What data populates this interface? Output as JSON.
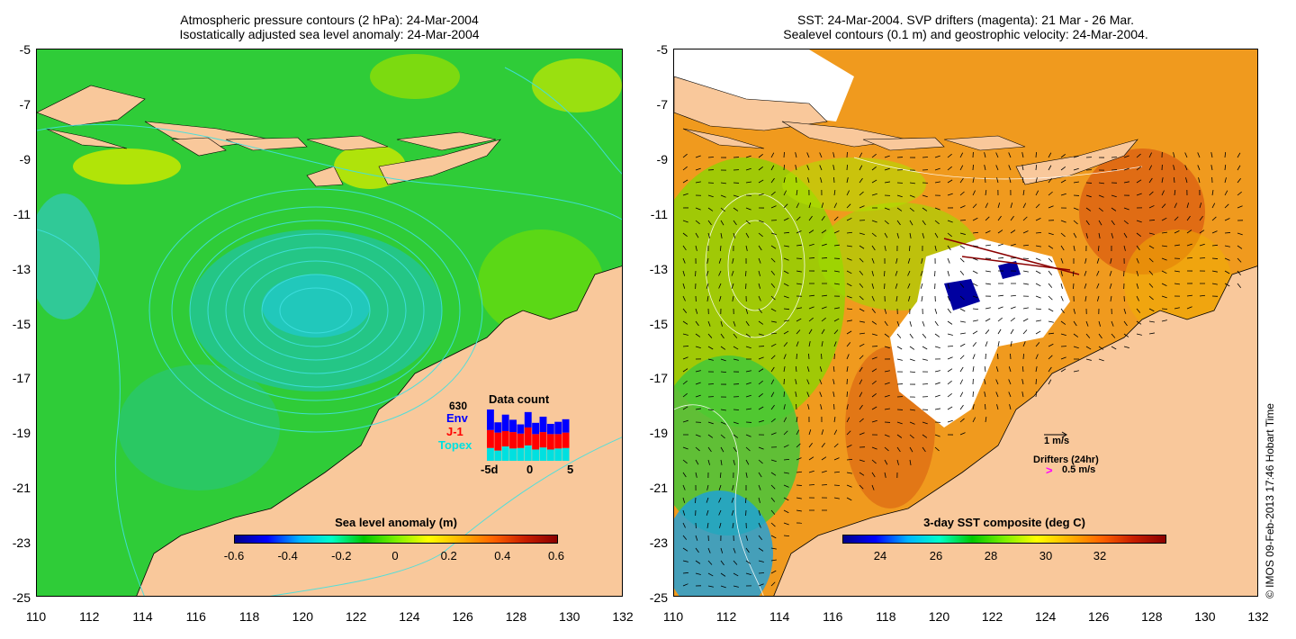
{
  "left_panel": {
    "title_line1": "Atmospheric pressure contours (2 hPa): 24-Mar-2004",
    "title_line2": "Isostatically adjusted sea level anomaly: 24-Mar-2004",
    "colorbar": {
      "title": "Sea level anomaly (m)",
      "labels": [
        "-0.6",
        "-0.4",
        "-0.2",
        "0",
        "0.2",
        "0.4",
        "0.6"
      ],
      "colors": [
        "#00008b",
        "#0000ff",
        "#00b4ff",
        "#00ffc8",
        "#00c800",
        "#7cf000",
        "#ffff00",
        "#ffb400",
        "#ff6400",
        "#c81e00",
        "#8b0000"
      ]
    },
    "data_count": {
      "title": "Data count",
      "total": "630",
      "legend": [
        {
          "name": "Env",
          "color": "#0000ff"
        },
        {
          "name": "J-1",
          "color": "#ff0000"
        },
        {
          "name": "Topex",
          "color": "#00e0e0"
        }
      ],
      "x_labels": [
        "-5d",
        "0",
        "5"
      ],
      "bars": [
        {
          "topex": 0.25,
          "j1": 0.35,
          "env": 0.4
        },
        {
          "topex": 0.2,
          "j1": 0.35,
          "env": 0.2
        },
        {
          "topex": 0.28,
          "j1": 0.3,
          "env": 0.32
        },
        {
          "topex": 0.24,
          "j1": 0.32,
          "env": 0.24
        },
        {
          "topex": 0.25,
          "j1": 0.28,
          "env": 0.18
        },
        {
          "topex": 0.3,
          "j1": 0.35,
          "env": 0.3
        },
        {
          "topex": 0.22,
          "j1": 0.3,
          "env": 0.22
        },
        {
          "topex": 0.26,
          "j1": 0.3,
          "env": 0.3
        },
        {
          "topex": 0.22,
          "j1": 0.3,
          "env": 0.2
        },
        {
          "topex": 0.24,
          "j1": 0.28,
          "env": 0.24
        },
        {
          "topex": 0.25,
          "j1": 0.3,
          "env": 0.26
        }
      ]
    }
  },
  "right_panel": {
    "title_line1": "SST: 24-Mar-2004. SVP drifters (magenta): 21 Mar - 26 Mar.",
    "title_line2": "Sealevel contours (0.1 m) and geostrophic velocity: 24-Mar-2004.",
    "colorbar": {
      "title": "3-day SST composite (deg C)",
      "labels": [
        "24",
        "26",
        "28",
        "30",
        "32"
      ],
      "colors": [
        "#00008b",
        "#0000ff",
        "#00b4ff",
        "#00ffc8",
        "#00c800",
        "#7cf000",
        "#ffff00",
        "#ffb400",
        "#ff6400",
        "#c81e00",
        "#8b0000"
      ]
    },
    "velocity_legend": "1 m/s",
    "drifters_label": "Drifters (24hr)",
    "drifter_scale_symbol": ">",
    "drifter_scale": "0.5 m/s"
  },
  "axes": {
    "x_labels": [
      "110",
      "112",
      "114",
      "116",
      "118",
      "120",
      "122",
      "124",
      "126",
      "128",
      "130",
      "132"
    ],
    "y_labels": [
      "-5",
      "-7",
      "-9",
      "-11",
      "-13",
      "-15",
      "-17",
      "-19",
      "-21",
      "-23",
      "-25"
    ]
  },
  "credit": "© IMOS 09-Feb-2013 17:46 Hobart Time",
  "colors": {
    "land": "#f9c89b",
    "ocean_green": "#2fcc38",
    "sst_orange": "#f09a1e",
    "contour_cyan": "#40e0e0",
    "drifter_magenta": "#ff00ff"
  }
}
